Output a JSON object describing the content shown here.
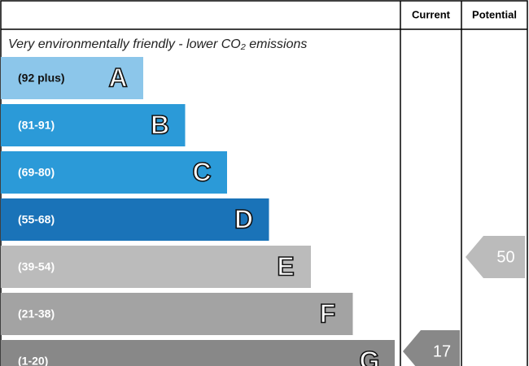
{
  "chart_data": {
    "type": "epc",
    "headers": [
      "Current",
      "Potential"
    ],
    "subtitle": "Very environmentally friendly - lower CO₂ emissions",
    "bands": [
      {
        "range": "(92 plus)",
        "letter": "A",
        "color": "#8cc6ea"
      },
      {
        "range": "(81-91)",
        "letter": "B",
        "color": "#2b9ad8"
      },
      {
        "range": "(69-80)",
        "letter": "C",
        "color": "#2b9ad8"
      },
      {
        "range": "(55-68)",
        "letter": "D",
        "color": "#1a73b8"
      },
      {
        "range": "(39-54)",
        "letter": "E",
        "color": "#bbbbbb"
      },
      {
        "range": "(21-38)",
        "letter": "F",
        "color": "#a3a3a3"
      },
      {
        "range": "(1-20)",
        "letter": "G",
        "color": "#888888"
      }
    ],
    "values": [
      17,
      50
    ],
    "arrow_colors": [
      "#888888",
      "#bbbbbb"
    ]
  }
}
